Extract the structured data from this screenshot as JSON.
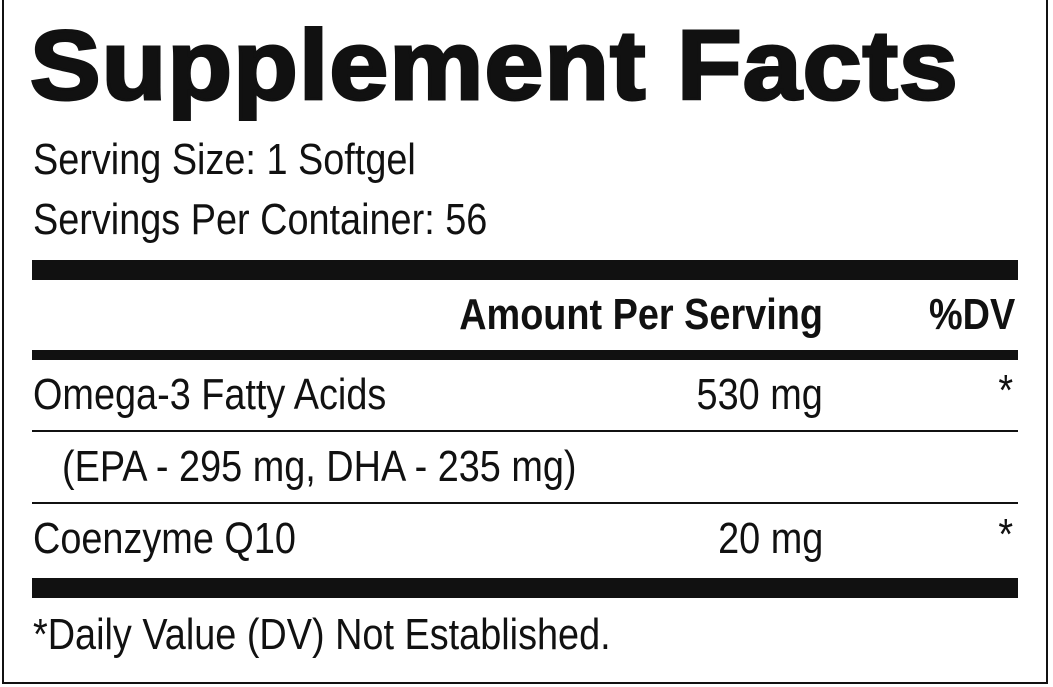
{
  "title": "Supplement Facts",
  "serving_size": "Serving Size: 1 Softgel",
  "servings_per_container": "Servings Per Container: 56",
  "header": {
    "amount": "Amount Per Serving",
    "dv": "%DV"
  },
  "rows": [
    {
      "name": "Omega-3 Fatty Acids",
      "amount": "530 mg",
      "dv": "*"
    },
    {
      "name": "(EPA - 295 mg, DHA - 235 mg)"
    },
    {
      "name": "Coenzyme Q10",
      "amount": "20 mg",
      "dv": "*"
    }
  ],
  "footnote": "*Daily Value (DV) Not Established."
}
